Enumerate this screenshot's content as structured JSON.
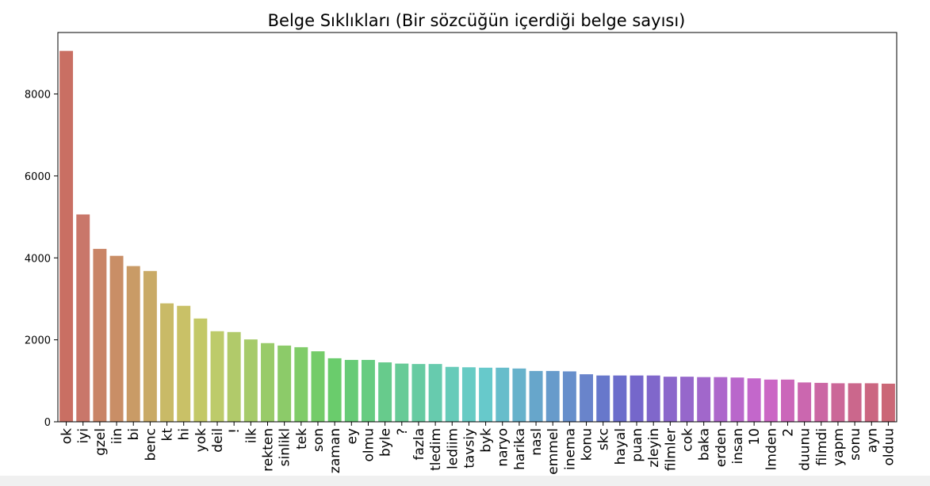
{
  "chart_data": {
    "type": "bar",
    "title": "Belge Sıklıkları (Bir sözcüğün içerdiği belge sayısı)",
    "xlabel": "",
    "ylabel": "",
    "ylim": [
      0,
      9500
    ],
    "yticks": [
      0,
      2000,
      4000,
      6000,
      8000
    ],
    "ytick_labels": [
      "0",
      "2000",
      "4000",
      "6000",
      "8000"
    ],
    "grid": false,
    "categories": [
      "ok",
      "iyi",
      "gzel",
      "iin",
      "bi",
      "benc",
      "kt",
      "hi",
      "yok",
      "deil",
      "!",
      "ilk",
      "rekten",
      "sinlikl",
      "tek",
      "son",
      "zaman",
      "ey",
      "olmu",
      "byle",
      "?",
      "fazla",
      "tledim",
      "lediim",
      "tavsiy",
      "byk",
      "naryo",
      "harika",
      "nasl",
      "emmel",
      "inema",
      "konu",
      "skc",
      "hayal",
      "puan",
      "zleyin",
      "filmler",
      "cok",
      "baka",
      "erden",
      "insan",
      "10",
      "lmden",
      "2",
      "duunu",
      "filmdi",
      "yapm",
      "sonu",
      "ayn",
      "olduu"
    ],
    "values": [
      9050,
      5060,
      4220,
      4050,
      3800,
      3680,
      2890,
      2830,
      2520,
      2210,
      2190,
      2010,
      1920,
      1860,
      1820,
      1720,
      1550,
      1510,
      1510,
      1450,
      1420,
      1410,
      1410,
      1340,
      1330,
      1320,
      1320,
      1300,
      1240,
      1240,
      1230,
      1160,
      1130,
      1130,
      1130,
      1130,
      1100,
      1100,
      1090,
      1090,
      1080,
      1060,
      1030,
      1030,
      960,
      950,
      940,
      940,
      940,
      930
    ],
    "colors": [
      "#c96f63",
      "#c9776a",
      "#c98466",
      "#c98e66",
      "#c99b66",
      "#c9aa66",
      "#c9ba67",
      "#c9c167",
      "#c3c867",
      "#bdcb6a",
      "#b1ca6a",
      "#a6cb6a",
      "#99cb69",
      "#8ccb69",
      "#80cc69",
      "#74cc69",
      "#6acc6c",
      "#67cb77",
      "#67cc81",
      "#67cb8c",
      "#67cb97",
      "#67cba2",
      "#67cbae",
      "#67cbb9",
      "#67cbc4",
      "#67c9cb",
      "#67bdcb",
      "#67b2cb",
      "#67a6cb",
      "#679bcb",
      "#678fcb",
      "#6984cb",
      "#6778cb",
      "#6b6dcb",
      "#7567cb",
      "#8067cb",
      "#8b67cb",
      "#9667cb",
      "#a167cb",
      "#ad67cb",
      "#b967cb",
      "#c367cb",
      "#cb67c5",
      "#cb67ba",
      "#cb67af",
      "#cb67a4",
      "#cb6798",
      "#cb678c",
      "#cb6781",
      "#cb6776"
    ]
  }
}
